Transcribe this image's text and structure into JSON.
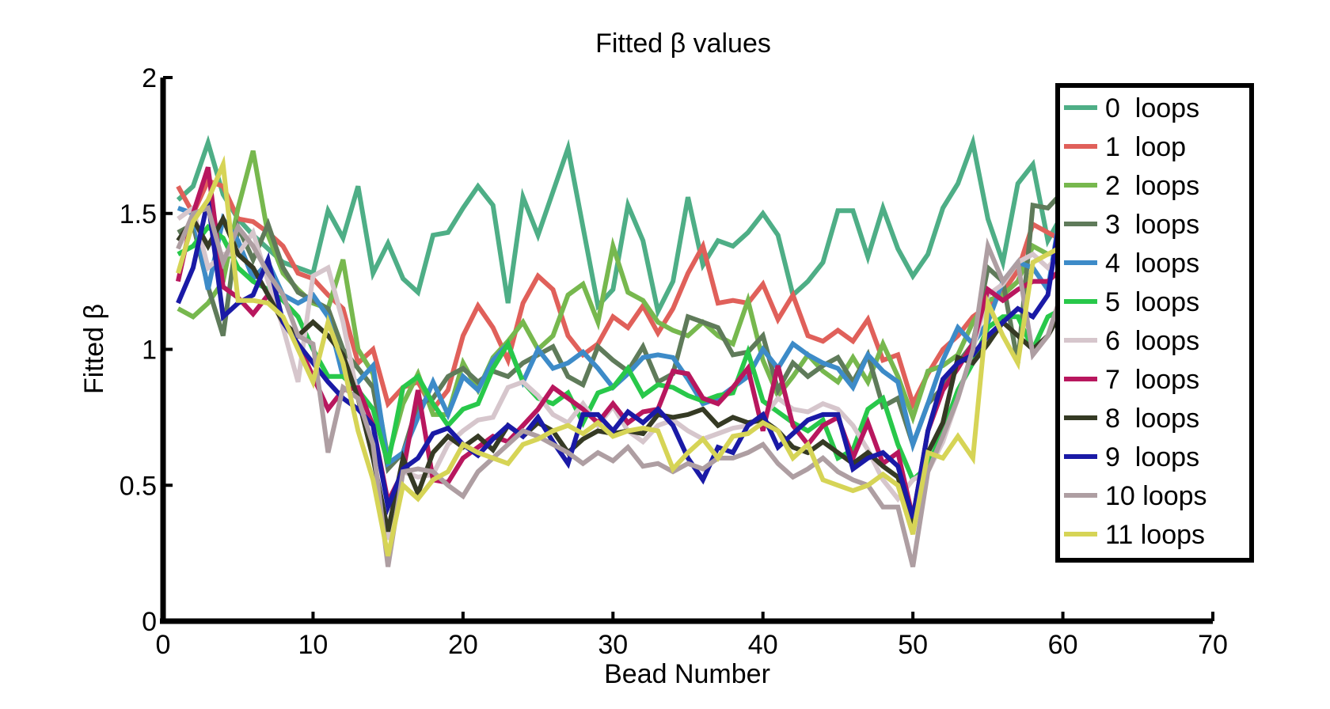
{
  "chart_data": {
    "type": "line",
    "title": "Fitted β values",
    "xlabel": "Bead Number",
    "ylabel": "Fitted β",
    "xlim": [
      0,
      70
    ],
    "ylim": [
      0,
      2
    ],
    "xticks": [
      0,
      10,
      20,
      30,
      40,
      50,
      60,
      70
    ],
    "xtick_labels": [
      "0",
      "10",
      "20",
      "30",
      "40",
      "50",
      "60",
      "70"
    ],
    "yticks": [
      0,
      0.5,
      1,
      1.5,
      2
    ],
    "ytick_labels": [
      "0",
      "0.5",
      "1",
      "1.5",
      "2"
    ],
    "grid": false,
    "legend_position": "top-right",
    "x": [
      1,
      2,
      3,
      4,
      5,
      6,
      7,
      8,
      9,
      10,
      11,
      12,
      13,
      14,
      15,
      16,
      17,
      18,
      19,
      20,
      21,
      22,
      23,
      24,
      25,
      26,
      27,
      28,
      29,
      30,
      31,
      32,
      33,
      34,
      35,
      36,
      37,
      38,
      39,
      40,
      41,
      42,
      43,
      44,
      45,
      46,
      47,
      48,
      49,
      50,
      51,
      52,
      53,
      54,
      55,
      56,
      57,
      58,
      59,
      60
    ],
    "series": [
      {
        "name": "0  loops",
        "color": "#4eae86",
        "values": [
          1.55,
          1.6,
          1.76,
          1.57,
          1.48,
          1.42,
          1.37,
          1.32,
          1.3,
          1.28,
          1.51,
          1.41,
          1.6,
          1.28,
          1.39,
          1.26,
          1.21,
          1.42,
          1.43,
          1.52,
          1.6,
          1.53,
          1.17,
          1.56,
          1.42,
          1.58,
          1.74,
          1.45,
          1.16,
          1.22,
          1.53,
          1.4,
          1.14,
          1.25,
          1.56,
          1.31,
          1.4,
          1.38,
          1.43,
          1.5,
          1.42,
          1.2,
          1.25,
          1.32,
          1.51,
          1.51,
          1.34,
          1.52,
          1.37,
          1.27,
          1.35,
          1.52,
          1.61,
          1.76,
          1.48,
          1.32,
          1.61,
          1.68,
          1.4,
          1.5
        ]
      },
      {
        "name": "1  loop",
        "color": "#e0605a",
        "values": [
          1.6,
          1.5,
          1.62,
          1.6,
          1.48,
          1.47,
          1.43,
          1.38,
          1.28,
          1.26,
          1.2,
          1.15,
          0.95,
          1.0,
          0.8,
          0.86,
          0.88,
          0.78,
          0.85,
          1.05,
          1.16,
          1.08,
          0.96,
          1.17,
          1.27,
          1.22,
          1.05,
          0.98,
          1.02,
          1.12,
          1.08,
          1.16,
          1.06,
          1.15,
          1.28,
          1.38,
          1.17,
          1.18,
          1.17,
          1.24,
          1.11,
          1.2,
          1.05,
          1.03,
          1.07,
          1.03,
          1.11,
          0.96,
          0.98,
          0.8,
          0.91,
          1.0,
          1.05,
          1.12,
          1.16,
          1.21,
          1.29,
          1.46,
          1.43,
          1.4
        ]
      },
      {
        "name": "2  loops",
        "color": "#77b84e",
        "values": [
          1.15,
          1.12,
          1.17,
          1.25,
          1.52,
          1.73,
          1.42,
          1.28,
          1.22,
          1.17,
          1.15,
          1.33,
          1.0,
          0.91,
          0.6,
          0.8,
          0.91,
          0.76,
          0.76,
          0.95,
          0.85,
          0.97,
          1.03,
          1.1,
          1.0,
          1.05,
          1.2,
          1.24,
          1.1,
          1.38,
          1.21,
          1.18,
          1.1,
          1.07,
          1.05,
          1.1,
          1.05,
          1.02,
          1.18,
          0.96,
          0.83,
          0.9,
          0.98,
          0.92,
          0.88,
          0.97,
          0.88,
          1.02,
          0.9,
          0.75,
          0.92,
          0.94,
          0.98,
          1.1,
          1.18,
          1.2,
          1.25,
          1.38,
          1.35,
          1.37
        ]
      },
      {
        "name": "3  loops",
        "color": "#5f7b5a",
        "values": [
          1.43,
          1.46,
          1.23,
          1.05,
          1.45,
          1.33,
          1.46,
          1.3,
          1.21,
          1.18,
          1.15,
          1.0,
          0.93,
          0.86,
          0.56,
          0.62,
          0.8,
          0.82,
          0.9,
          0.93,
          0.88,
          0.92,
          0.9,
          0.95,
          0.98,
          1.01,
          0.9,
          0.87,
          1.01,
          0.96,
          0.92,
          1.01,
          0.88,
          0.91,
          1.12,
          1.1,
          1.08,
          0.98,
          0.99,
          1.05,
          0.85,
          0.95,
          0.9,
          0.94,
          0.97,
          0.88,
          0.98,
          0.79,
          0.82,
          0.65,
          0.8,
          0.86,
          0.95,
          1.02,
          1.3,
          1.25,
          0.95,
          1.53,
          1.52,
          1.58
        ]
      },
      {
        "name": "4  loops",
        "color": "#3d8bc8",
        "values": [
          1.52,
          1.5,
          1.22,
          1.48,
          1.4,
          1.26,
          1.32,
          1.2,
          1.17,
          1.2,
          1.12,
          0.9,
          0.88,
          0.94,
          0.58,
          0.62,
          0.75,
          0.88,
          0.76,
          0.9,
          0.85,
          0.96,
          1.02,
          0.88,
          1.0,
          0.93,
          0.95,
          0.99,
          0.93,
          0.86,
          0.91,
          0.97,
          0.98,
          0.97,
          0.89,
          0.8,
          0.82,
          0.86,
          0.9,
          1.0,
          0.93,
          1.02,
          0.98,
          0.95,
          0.93,
          0.86,
          0.98,
          0.92,
          0.88,
          0.65,
          0.8,
          0.96,
          1.08,
          1.02,
          1.1,
          1.25,
          1.32,
          1.3,
          1.22,
          1.56
        ]
      },
      {
        "name": "5  loops",
        "color": "#28c84a",
        "values": [
          1.35,
          1.38,
          1.45,
          1.41,
          1.3,
          1.25,
          1.22,
          1.18,
          1.12,
          1.0,
          0.9,
          0.9,
          0.85,
          0.78,
          0.58,
          0.86,
          0.9,
          0.8,
          0.72,
          0.78,
          0.8,
          0.93,
          1.02,
          0.88,
          0.82,
          0.8,
          0.84,
          0.73,
          0.84,
          0.86,
          0.93,
          0.83,
          0.87,
          0.86,
          0.83,
          0.81,
          0.83,
          0.84,
          0.99,
          0.81,
          0.77,
          0.73,
          0.7,
          0.74,
          0.6,
          0.63,
          0.78,
          0.82,
          0.65,
          0.52,
          0.57,
          0.7,
          0.85,
          0.95,
          1.08,
          1.12,
          1.12,
          1.0,
          1.12,
          1.15
        ]
      },
      {
        "name": "6  loops",
        "color": "#d6c6cc",
        "values": [
          1.48,
          1.52,
          1.3,
          1.35,
          1.35,
          1.43,
          1.25,
          1.08,
          0.88,
          1.27,
          1.3,
          1.1,
          0.82,
          0.62,
          0.3,
          0.55,
          0.53,
          0.54,
          0.65,
          0.7,
          0.74,
          0.75,
          0.86,
          0.88,
          0.83,
          0.76,
          0.73,
          0.8,
          0.72,
          0.79,
          0.7,
          0.66,
          0.72,
          0.74,
          0.7,
          0.67,
          0.69,
          0.71,
          0.72,
          0.75,
          0.82,
          0.78,
          0.77,
          0.8,
          0.78,
          0.72,
          0.63,
          0.52,
          0.45,
          0.52,
          0.55,
          0.66,
          0.82,
          1.0,
          1.2,
          1.24,
          1.32,
          1.35,
          1.3,
          1.37
        ]
      },
      {
        "name": "7  loops",
        "color": "#b8175e",
        "values": [
          1.25,
          1.5,
          1.67,
          1.23,
          1.19,
          1.13,
          1.2,
          1.1,
          1.02,
          0.9,
          0.78,
          0.85,
          0.86,
          0.72,
          0.44,
          0.55,
          0.85,
          0.52,
          0.51,
          0.6,
          0.64,
          0.68,
          0.66,
          0.72,
          0.78,
          0.86,
          0.82,
          0.78,
          0.73,
          0.8,
          0.73,
          0.77,
          0.78,
          0.92,
          0.91,
          0.82,
          0.8,
          0.86,
          0.93,
          0.7,
          0.94,
          0.72,
          0.65,
          0.72,
          0.75,
          0.6,
          0.73,
          0.58,
          0.62,
          0.38,
          0.7,
          0.85,
          0.93,
          1.02,
          1.22,
          1.18,
          1.22,
          1.25,
          1.25,
          1.3
        ]
      },
      {
        "name": "8  loops",
        "color": "#353a24",
        "values": [
          1.4,
          1.48,
          1.38,
          1.48,
          1.35,
          1.3,
          1.2,
          1.1,
          1.05,
          1.1,
          1.05,
          0.98,
          0.82,
          0.6,
          0.33,
          0.6,
          0.47,
          0.62,
          0.68,
          0.64,
          0.68,
          0.63,
          0.72,
          0.68,
          0.73,
          0.7,
          0.62,
          0.67,
          0.7,
          0.69,
          0.7,
          0.69,
          0.76,
          0.75,
          0.76,
          0.78,
          0.72,
          0.75,
          0.73,
          0.74,
          0.7,
          0.64,
          0.62,
          0.66,
          0.62,
          0.58,
          0.62,
          0.57,
          0.53,
          0.35,
          0.62,
          0.73,
          0.97,
          0.95,
          1.02,
          1.1,
          1.05,
          1.0,
          1.05,
          1.15
        ]
      },
      {
        "name": "9  loops",
        "color": "#1a1aa6",
        "values": [
          1.17,
          1.3,
          1.55,
          1.12,
          1.17,
          1.2,
          1.33,
          1.1,
          1.02,
          0.95,
          0.88,
          0.82,
          0.78,
          0.72,
          0.42,
          0.56,
          0.6,
          0.69,
          0.71,
          0.65,
          0.61,
          0.67,
          0.72,
          0.68,
          0.75,
          0.66,
          0.58,
          0.76,
          0.76,
          0.7,
          0.77,
          0.73,
          0.78,
          0.72,
          0.6,
          0.52,
          0.64,
          0.62,
          0.72,
          0.76,
          0.64,
          0.69,
          0.74,
          0.76,
          0.76,
          0.56,
          0.6,
          0.62,
          0.57,
          0.38,
          0.7,
          0.89,
          0.95,
          0.98,
          1.05,
          1.1,
          1.15,
          1.12,
          1.2,
          1.55
        ]
      },
      {
        "name": "10 loops",
        "color": "#ae9ea2",
        "values": [
          1.37,
          1.5,
          1.52,
          1.32,
          1.45,
          1.38,
          1.28,
          1.2,
          1.05,
          1.02,
          0.62,
          0.86,
          0.82,
          0.65,
          0.2,
          0.55,
          0.56,
          0.55,
          0.5,
          0.46,
          0.55,
          0.6,
          0.65,
          0.7,
          0.68,
          0.65,
          0.62,
          0.58,
          0.62,
          0.59,
          0.64,
          0.57,
          0.58,
          0.55,
          0.58,
          0.56,
          0.6,
          0.6,
          0.62,
          0.65,
          0.58,
          0.53,
          0.56,
          0.6,
          0.55,
          0.52,
          0.5,
          0.42,
          0.42,
          0.2,
          0.55,
          0.68,
          0.82,
          1.0,
          1.38,
          1.25,
          1.32,
          0.98,
          1.05,
          1.22
        ]
      },
      {
        "name": "11 loops",
        "color": "#d6d456",
        "values": [
          1.28,
          1.47,
          1.55,
          1.68,
          1.18,
          1.18,
          1.17,
          1.12,
          1.0,
          0.88,
          1.1,
          0.95,
          0.7,
          0.52,
          0.24,
          0.5,
          0.45,
          0.52,
          0.55,
          0.65,
          0.62,
          0.6,
          0.58,
          0.65,
          0.67,
          0.7,
          0.72,
          0.69,
          0.73,
          0.68,
          0.7,
          0.71,
          0.7,
          0.56,
          0.62,
          0.67,
          0.6,
          0.68,
          0.69,
          0.73,
          0.7,
          0.6,
          0.65,
          0.52,
          0.5,
          0.48,
          0.5,
          0.54,
          0.5,
          0.32,
          0.62,
          0.6,
          0.68,
          0.6,
          1.17,
          1.05,
          0.95,
          1.32,
          1.35,
          1.38
        ]
      }
    ]
  }
}
